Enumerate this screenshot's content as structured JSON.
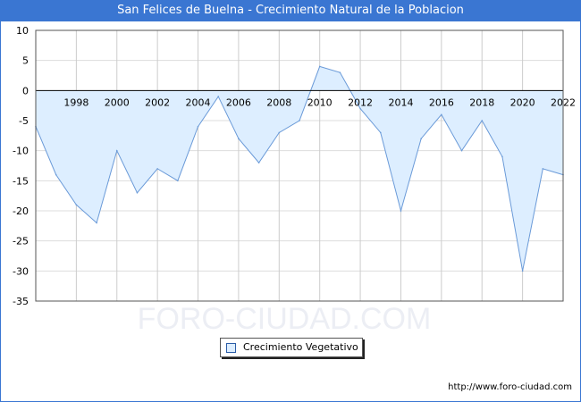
{
  "header": {
    "title": "San Felices de Buelna - Crecimiento Natural de la Poblacion"
  },
  "colors": {
    "accent": "#3a76d2",
    "fill": "#ddeeff",
    "line": "#6a9ad8"
  },
  "watermark": "FORO-CIUDAD.COM",
  "footer": {
    "credit": "http://www.foro-ciudad.com"
  },
  "chart_data": {
    "type": "area",
    "title": "San Felices de Buelna - Crecimiento Natural de la Poblacion",
    "xlabel": "",
    "ylabel": "",
    "x": [
      1996,
      1997,
      1998,
      1999,
      2000,
      2001,
      2002,
      2003,
      2004,
      2005,
      2006,
      2007,
      2008,
      2009,
      2010,
      2011,
      2012,
      2013,
      2014,
      2015,
      2016,
      2017,
      2018,
      2019,
      2020,
      2021,
      2022
    ],
    "series": [
      {
        "name": "Crecimiento Vegetativo",
        "values": [
          -6,
          -14,
          -19,
          -22,
          -10,
          -17,
          -13,
          -15,
          -6,
          -1,
          -8,
          -12,
          -7,
          -5,
          4,
          3,
          -3,
          -7,
          -20,
          -8,
          -4,
          -10,
          -5,
          -11,
          -30,
          -13,
          -14
        ]
      }
    ],
    "x_ticks": [
      "1998",
      "2000",
      "2002",
      "2004",
      "2006",
      "2008",
      "2010",
      "2012",
      "2014",
      "2016",
      "2018",
      "2020",
      "2022"
    ],
    "y_ticks": [
      "10",
      "5",
      "0",
      "-5",
      "-10",
      "-15",
      "-20",
      "-25",
      "-30",
      "-35"
    ],
    "ylim": [
      -35,
      10
    ],
    "xlim": [
      1996,
      2022
    ],
    "grid": true,
    "legend_position": "bottom-center"
  }
}
